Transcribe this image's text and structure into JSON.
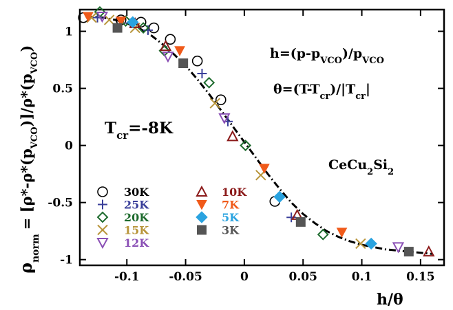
{
  "chart_data": {
    "type": "scatter",
    "xlabel_parts": {
      "main": "h/θ"
    },
    "ylabel_parts": {
      "rho": "ρ",
      "norm": "norm",
      "eq": "= [ρ*-ρ*(p",
      "vco1": "VCO",
      "mid": ")]/ρ*(p",
      "vco2": "VCO",
      "end": ")"
    },
    "xlim": [
      -0.14,
      0.17
    ],
    "ylim": [
      -1.05,
      1.19
    ],
    "x_ticks": [
      -0.1,
      -0.05,
      0,
      0.05,
      0.1,
      0.15
    ],
    "x_tick_labels": [
      "-0.1",
      "-0.05",
      "0",
      "0.05",
      "0.1",
      "0.15"
    ],
    "y_ticks": [
      1,
      0.5,
      0,
      -0.5,
      -1
    ],
    "y_tick_labels": [
      "1",
      "0.5",
      "0",
      "-0.5",
      "-1"
    ],
    "grid": false,
    "legend_position": "lower-left",
    "annotations": {
      "h_def": {
        "a": "h=(p-p",
        "s1": "VCO",
        "b": ")/p",
        "s2": "VCO"
      },
      "theta_def": {
        "a": "θ=(T-T",
        "s1": "cr",
        "b": ")/|T",
        "s2": "cr",
        "c": "|"
      },
      "tcr": {
        "a": "T",
        "s": "cr",
        "b": "=-8K"
      },
      "material": {
        "a": "CeCu",
        "s": "2",
        "b": "Si",
        "s2": "2"
      }
    },
    "fit_curve": {
      "style": "dash-dot",
      "x": [
        -0.135,
        -0.12,
        -0.11,
        -0.1,
        -0.09,
        -0.08,
        -0.07,
        -0.06,
        -0.05,
        -0.04,
        -0.03,
        -0.02,
        -0.01,
        0,
        0.01,
        0.02,
        0.03,
        0.04,
        0.05,
        0.06,
        0.07,
        0.08,
        0.09,
        0.1,
        0.11,
        0.12,
        0.13,
        0.14,
        0.15,
        0.16
      ],
      "y": [
        1.13,
        1.12,
        1.1,
        1.07,
        1.03,
        0.97,
        0.89,
        0.8,
        0.7,
        0.58,
        0.45,
        0.31,
        0.17,
        0.03,
        -0.11,
        -0.25,
        -0.38,
        -0.5,
        -0.6,
        -0.68,
        -0.75,
        -0.8,
        -0.84,
        -0.87,
        -0.89,
        -0.91,
        -0.92,
        -0.93,
        -0.94,
        -0.95
      ]
    },
    "series": [
      {
        "name": "30K",
        "marker": "circle-open",
        "color": "#000000",
        "x": [
          -0.137,
          -0.105,
          -0.088,
          -0.077,
          -0.063,
          -0.04,
          -0.02,
          0.026
        ],
        "y": [
          1.12,
          1.1,
          1.08,
          1.03,
          0.93,
          0.74,
          0.4,
          -0.49
        ]
      },
      {
        "name": "25K",
        "marker": "plus",
        "color": "#3a3f9a",
        "x": [
          -0.125,
          -0.097,
          -0.082,
          -0.036,
          -0.014,
          0.04
        ],
        "y": [
          1.12,
          1.07,
          1.01,
          0.63,
          0.21,
          -0.63
        ]
      },
      {
        "name": "20K",
        "marker": "diamond-open",
        "color": "#1e6b2e",
        "x": [
          -0.123,
          -0.101,
          -0.086,
          -0.068,
          -0.03,
          0.001,
          0.067
        ],
        "y": [
          1.17,
          1.09,
          1.03,
          0.83,
          0.55,
          0.0,
          -0.78
        ]
      },
      {
        "name": "15K",
        "marker": "x",
        "color": "#b8953a",
        "x": [
          -0.13,
          -0.115,
          -0.093,
          -0.025,
          0.014,
          0.099
        ],
        "y": [
          1.12,
          1.1,
          1.03,
          0.37,
          -0.26,
          -0.86
        ]
      },
      {
        "name": "12K",
        "marker": "triangle-down-open",
        "color": "#8a4fb5",
        "x": [
          -0.121,
          -0.065,
          -0.017,
          0.131
        ],
        "y": [
          1.13,
          0.78,
          0.24,
          -0.89
        ]
      },
      {
        "name": "10K",
        "marker": "triangle-up-open",
        "color": "#8b1a1a",
        "x": [
          -0.093,
          -0.067,
          -0.01,
          0.045,
          0.157
        ],
        "y": [
          1.07,
          0.87,
          0.08,
          -0.61,
          -0.93
        ]
      },
      {
        "name": "7K",
        "marker": "triangle-down-filled",
        "color": "#f05a1a",
        "x": [
          -0.133,
          -0.105,
          -0.055,
          0.017,
          0.083
        ],
        "y": [
          1.13,
          1.09,
          0.83,
          -0.2,
          -0.76
        ]
      },
      {
        "name": "5K",
        "marker": "diamond-filled",
        "color": "#2aa3e0",
        "x": [
          -0.095,
          0.03,
          0.108
        ],
        "y": [
          1.08,
          -0.45,
          -0.86
        ]
      },
      {
        "name": "3K",
        "marker": "square-filled",
        "color": "#555555",
        "x": [
          -0.108,
          -0.052,
          0.048,
          0.14
        ],
        "y": [
          1.03,
          0.72,
          -0.67,
          -0.93
        ]
      }
    ]
  }
}
